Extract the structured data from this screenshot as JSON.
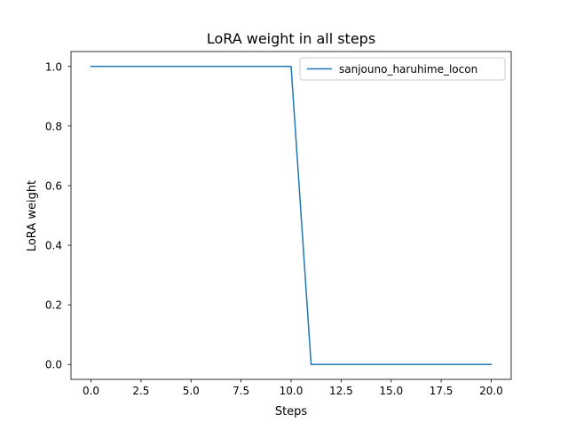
{
  "chart_data": {
    "type": "line",
    "title": "LoRA weight in all steps",
    "xlabel": "Steps",
    "ylabel": "LoRA weight",
    "x": [
      0,
      1,
      2,
      3,
      4,
      5,
      6,
      7,
      8,
      9,
      10,
      11,
      12,
      13,
      14,
      15,
      16,
      17,
      18,
      19,
      20
    ],
    "series": [
      {
        "name": "sanjouno_haruhime_locon",
        "color": "#1f77b4",
        "values": [
          1,
          1,
          1,
          1,
          1,
          1,
          1,
          1,
          1,
          1,
          1,
          0,
          0,
          0,
          0,
          0,
          0,
          0,
          0,
          0,
          0
        ]
      }
    ],
    "xlim": [
      -1,
      21
    ],
    "ylim": [
      -0.05,
      1.05
    ],
    "xticks": [
      0,
      2.5,
      5,
      7.5,
      10,
      12.5,
      15,
      17.5,
      20
    ],
    "xtick_labels": [
      "0.0",
      "2.5",
      "5.0",
      "7.5",
      "10.0",
      "12.5",
      "15.0",
      "17.5",
      "20.0"
    ],
    "yticks": [
      0,
      0.2,
      0.4,
      0.6,
      0.8,
      1.0
    ],
    "ytick_labels": [
      "0.0",
      "0.2",
      "0.4",
      "0.6",
      "0.8",
      "1.0"
    ],
    "grid": false,
    "legend_position": "top-right"
  }
}
